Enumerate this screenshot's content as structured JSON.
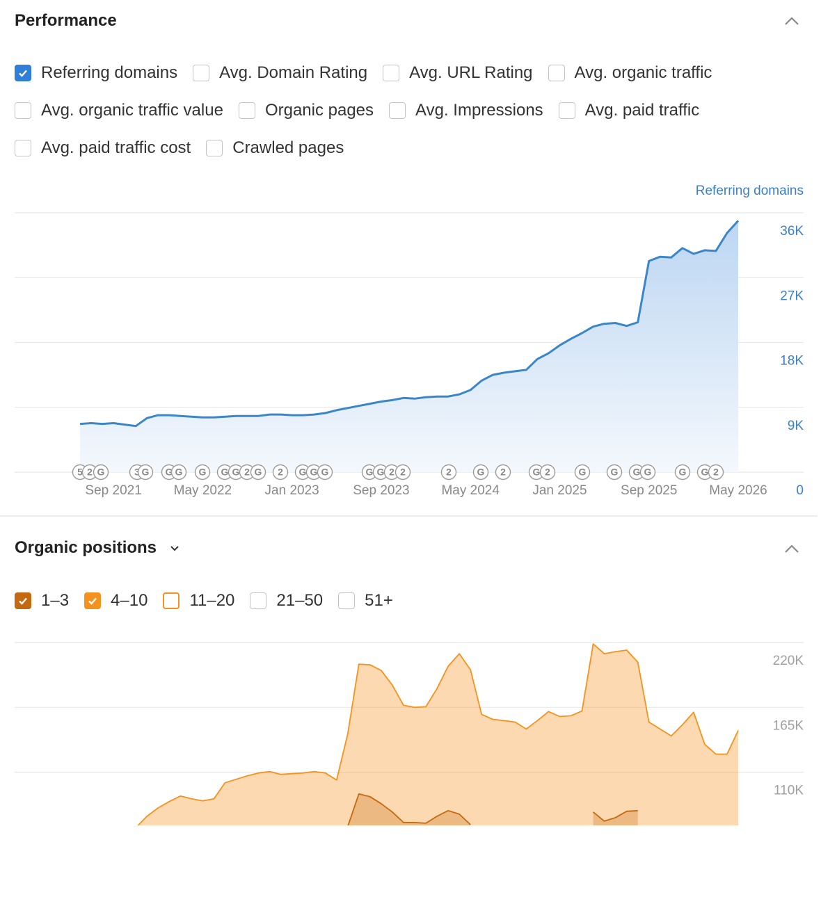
{
  "performance": {
    "title": "Performance",
    "options": [
      {
        "label": "Avg. Domain Rating"
      },
      {
        "label": "Avg. URL Rating"
      },
      {
        "label": "Avg. organic traffic"
      },
      {
        "label": "Avg. organic traffic value"
      },
      {
        "label": "Organic pages"
      },
      {
        "label": "Avg. Impressions"
      },
      {
        "label": "Avg. paid traffic"
      },
      {
        "label": "Avg. paid traffic cost"
      },
      {
        "label": "Crawled pages"
      }
    ]
  },
  "organic": {
    "title": "Organic positions",
    "options": [
      {
        "label": "11–20",
        "color": "#f5921e"
      },
      {
        "label": "21–50"
      },
      {
        "label": "51+"
      }
    ]
  },
  "chart_data": [
    {
      "type": "area",
      "categories": [
        null,
        null,
        null,
        "Sep 2021",
        null,
        null,
        null,
        null,
        null,
        null,
        null,
        "May 2022",
        null,
        null,
        null,
        null,
        null,
        null,
        null,
        "Jan 2023",
        null,
        null,
        null,
        null,
        null,
        null,
        null,
        "Sep 2023",
        null,
        null,
        null,
        null,
        null,
        null,
        null,
        "May 2024",
        null,
        null,
        null,
        null,
        null,
        null,
        null,
        "Jan 2025",
        null,
        null,
        null,
        null,
        null,
        null,
        null,
        "Sep 2025",
        null,
        null,
        null,
        null,
        null,
        null,
        null,
        "May 2026"
      ],
      "series": [
        {
          "name": "Referring domains",
          "color": "#3a86c8",
          "values": [
            6700,
            6800,
            6700,
            6800,
            6600,
            6400,
            7500,
            7900,
            7900,
            7800,
            7700,
            7600,
            7600,
            7700,
            7800,
            7800,
            7800,
            8000,
            8000,
            7900,
            7900,
            8000,
            8200,
            8600,
            8900,
            9200,
            9500,
            9800,
            10000,
            10300,
            10200,
            10400,
            10500,
            10500,
            10800,
            11400,
            12700,
            13500,
            13800,
            14000,
            14200,
            15700,
            16500,
            17600,
            18500,
            19300,
            20200,
            20600,
            20700,
            20300,
            20800,
            29300,
            29900,
            29800,
            31100,
            30300,
            30800,
            30700,
            33200,
            34900
          ]
        }
      ],
      "ylim": [
        0,
        36000
      ],
      "yticks": [
        0,
        {
          "value": 9000,
          "label": "9K"
        },
        {
          "value": 18000,
          "label": "18K"
        },
        {
          "value": 27000,
          "label": "27K"
        },
        {
          "value": 36000,
          "label": "36K"
        }
      ],
      "grid": true,
      "annotations": [
        "5",
        "2",
        "G",
        "3",
        "G",
        "G",
        "G",
        "G",
        "G",
        "G",
        "2",
        "G",
        "2",
        "G",
        "G",
        "G",
        "G",
        "G",
        "2",
        "2",
        "2",
        "G",
        "2",
        "G",
        "2",
        "G",
        "G",
        "G",
        "G",
        "G",
        "G",
        "2"
      ]
    },
    {
      "type": "area",
      "series": [
        {
          "name": "4–10",
          "color": "#f5921e",
          "values": [
            null,
            null,
            null,
            null,
            null,
            63000,
            72700,
            79800,
            85200,
            89900,
            87500,
            85800,
            87500,
            101100,
            104100,
            107000,
            109400,
            110600,
            108200,
            108800,
            109400,
            110600,
            109400,
            103500,
            142500,
            201700,
            201100,
            196300,
            183900,
            166800,
            165000,
            165600,
            181000,
            199900,
            210500,
            196900,
            159100,
            154900,
            153800,
            152600,
            146700,
            153800,
            161500,
            157300,
            157900,
            162000,
            218800,
            210500,
            212300,
            213500,
            203400,
            152600,
            146700,
            140800,
            150200,
            160900,
            133700,
            125400,
            125400,
            145500
          ]
        },
        {
          "name": "1–3",
          "color": "#c4690f",
          "values": [
            null,
            null,
            null,
            null,
            null,
            null,
            null,
            null,
            null,
            null,
            null,
            null,
            null,
            null,
            null,
            null,
            null,
            null,
            null,
            null,
            null,
            null,
            null,
            null,
            64000,
            91700,
            89300,
            83400,
            76300,
            67400,
            67400,
            66800,
            72700,
            77500,
            74500,
            65600,
            null,
            null,
            null,
            null,
            null,
            null,
            null,
            null,
            null,
            null,
            76300,
            68600,
            71600,
            76900,
            77500,
            null,
            null,
            null,
            null,
            null,
            null,
            null,
            null,
            null
          ]
        }
      ],
      "ylim": [
        65000,
        220000
      ],
      "yticks": [
        {
          "value": 110000,
          "label": "110K"
        },
        {
          "value": 165000,
          "label": "165K"
        },
        {
          "value": 220000,
          "label": "220K"
        }
      ],
      "grid": true
    }
  ]
}
